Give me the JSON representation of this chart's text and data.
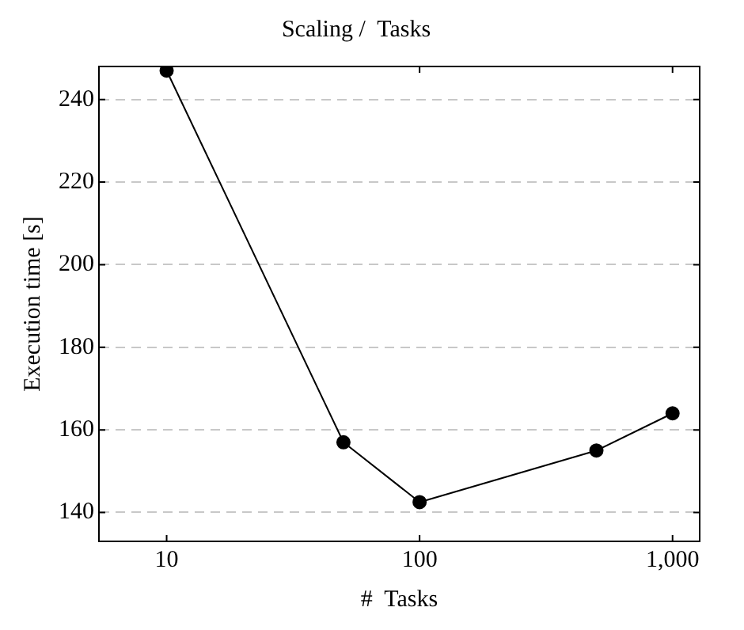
{
  "chart_data": {
    "type": "line",
    "title": "Scaling /  Tasks",
    "xlabel": "#  Tasks",
    "ylabel": "Execution time [s]",
    "x": [
      10,
      50,
      100,
      500,
      1000
    ],
    "series": [
      {
        "color": "#000000",
        "values": [
          247,
          157,
          142.5,
          155,
          164
        ]
      }
    ],
    "log": "x",
    "xlim": [
      5.4,
      1280
    ],
    "xticks": [
      10,
      100,
      {
        "value": 1000,
        "label": "1,000"
      }
    ],
    "ylim": [
      133,
      248
    ],
    "yticks": [
      140,
      160,
      180,
      200,
      220,
      240
    ],
    "grid": "y",
    "marker": "circle",
    "line_style": "solid",
    "legend": false
  }
}
